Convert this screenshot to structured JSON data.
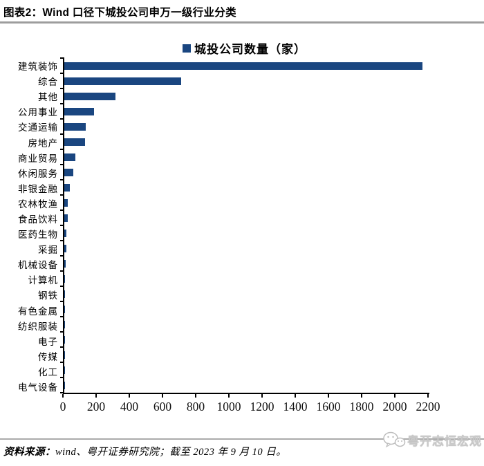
{
  "header": {
    "title": "图表2：Wind 口径下城投公司申万一级行业分类"
  },
  "chart_data": {
    "type": "bar",
    "orientation": "horizontal",
    "legend": "城投公司数量（家）",
    "legend_position": "top-center",
    "grid": false,
    "categories": [
      "建筑装饰",
      "综合",
      "其他",
      "公用事业",
      "交通运输",
      "房地产",
      "商业贸易",
      "休闲服务",
      "非银金融",
      "农林牧渔",
      "食品饮料",
      "医药生物",
      "采掘",
      "机械设备",
      "计算机",
      "钢铁",
      "有色金属",
      "纺织服装",
      "电子",
      "传媒",
      "化工",
      "电气设备"
    ],
    "values": [
      2160,
      705,
      310,
      180,
      130,
      124,
      65,
      53,
      32,
      21,
      19,
      14,
      13,
      7,
      6,
      5,
      4,
      4,
      3,
      3,
      2,
      2
    ],
    "xlabel": "",
    "ylabel": "",
    "xlim": [
      0,
      2200
    ],
    "xticks": [
      0,
      200,
      400,
      600,
      800,
      1000,
      1200,
      1400,
      1600,
      1800,
      2000,
      2200
    ],
    "bar_color": "#1A4680"
  },
  "footer": {
    "source_label": "资料来源：",
    "source_text": "wind、粤开证券研究院；截至 2023 年 9 月 10 日。",
    "logo_text": "粤开志恒宏观",
    "logo_icon": "wechat-icon"
  },
  "colors": {
    "bar": "#1A4680",
    "rule_gray": "#9d9d9d",
    "logo_gray": "#c9c9c9"
  }
}
